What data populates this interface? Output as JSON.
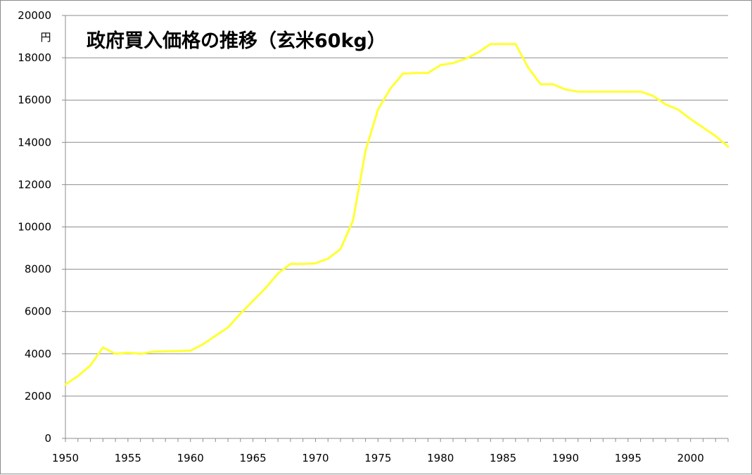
{
  "chart_data": {
    "type": "line",
    "title": "政府買入価格の推移（玄米60kg）",
    "ylabel": "円",
    "xlabel": "",
    "xlim": [
      1950,
      2003
    ],
    "ylim": [
      0,
      20000
    ],
    "x_ticks": [
      1950,
      1955,
      1960,
      1965,
      1970,
      1975,
      1980,
      1985,
      1990,
      1995,
      2000
    ],
    "y_ticks": [
      0,
      2000,
      4000,
      6000,
      8000,
      10000,
      12000,
      14000,
      16000,
      18000,
      20000
    ],
    "grid": true,
    "legend": "none",
    "series": [
      {
        "color": "#ffff33",
        "x": [
          1950,
          1951,
          1952,
          1953,
          1954,
          1955,
          1956,
          1957,
          1958,
          1959,
          1960,
          1961,
          1962,
          1963,
          1964,
          1965,
          1966,
          1967,
          1968,
          1969,
          1970,
          1971,
          1972,
          1973,
          1974,
          1975,
          1976,
          1977,
          1978,
          1979,
          1980,
          1981,
          1982,
          1983,
          1984,
          1985,
          1986,
          1987,
          1988,
          1989,
          1990,
          1991,
          1992,
          1993,
          1994,
          1995,
          1996,
          1997,
          1998,
          1999,
          2000,
          2001,
          2002,
          2003
        ],
        "y": [
          2550,
          2950,
          3450,
          4300,
          4000,
          4050,
          4000,
          4100,
          4120,
          4130,
          4150,
          4450,
          4850,
          5250,
          5900,
          6500,
          7100,
          7800,
          8250,
          8250,
          8280,
          8500,
          8950,
          10300,
          13600,
          15550,
          16550,
          17250,
          17280,
          17280,
          17650,
          17750,
          17950,
          18250,
          18650,
          18650,
          18650,
          17550,
          16750,
          16750,
          16500,
          16400,
          16400,
          16400,
          16400,
          16400,
          16400,
          16200,
          15800,
          15550,
          15100,
          14700,
          14300,
          13800
        ]
      }
    ]
  }
}
